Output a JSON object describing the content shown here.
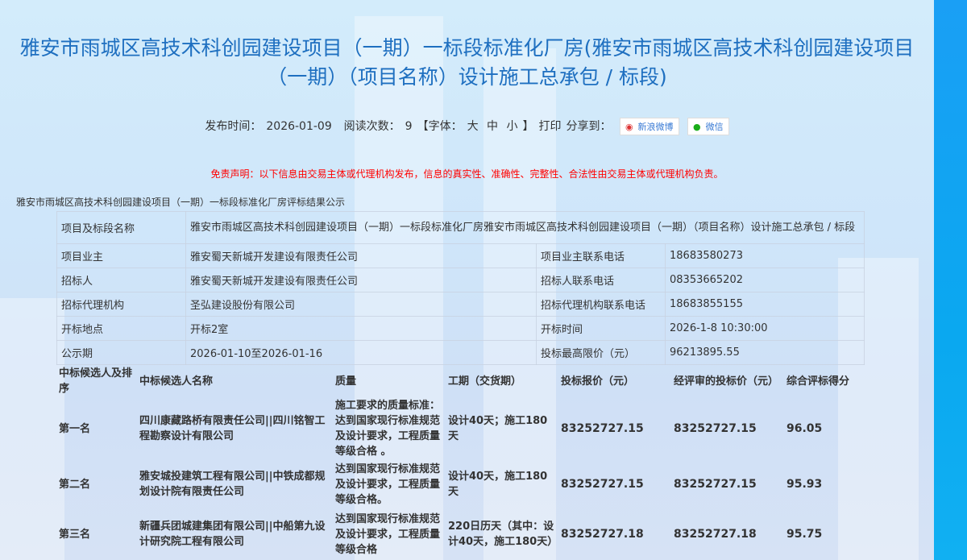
{
  "title": "雅安市雨城区高技术科创园建设项目（一期）一标段标准化厂房(雅安市雨城区高技术科创园建设项目（一期）（项目名称）设计施工总承包 / 标段)",
  "meta": {
    "publish_label": "发布时间：",
    "publish_date": "2026-01-09",
    "reads_label": "阅读次数：",
    "reads": "9",
    "font_label": "【字体：",
    "font_large": "大",
    "font_medium": "中",
    "font_small": "小",
    "font_close": "】",
    "print": "打印",
    "share_label": "分享到：",
    "weibo": "新浪微博",
    "wechat": "微信"
  },
  "disclaimer": "免责声明：以下信息由交易主体或代理机构发布，信息的真实性、准确性、完整性、合法性由交易主体或代理机构负责。",
  "subtitle": "雅安市雨城区高技术科创园建设项目（一期）一标段标准化厂房评标结果公示",
  "info": {
    "project_label": "项目及标段名称",
    "project": "雅安市雨城区高技术科创园建设项目（一期）一标段标准化厂房雅安市雨城区高技术科创园建设项目（一期）（项目名称）设计施工总承包 / 标段",
    "rows": [
      {
        "l1": "项目业主",
        "v1": "雅安蜀天新城开发建设有限责任公司",
        "l2": "项目业主联系电话",
        "v2": "18683580273"
      },
      {
        "l1": "招标人",
        "v1": "雅安蜀天新城开发建设有限责任公司",
        "l2": "招标人联系电话",
        "v2": "08353665202"
      },
      {
        "l1": "招标代理机构",
        "v1": "圣弘建设股份有限公司",
        "l2": "招标代理机构联系电话",
        "v2": "18683855155"
      },
      {
        "l1": "开标地点",
        "v1": "开标2室",
        "l2": "开标时间",
        "v2": "2026-1-8 10:30:00"
      },
      {
        "l1": "公示期",
        "v1": "2026-01-10至2026-01-16",
        "l2": "投标最高限价（元）",
        "v2": "96213895.55"
      }
    ]
  },
  "candidates": {
    "headers": [
      "中标候选人及排序",
      "中标候选人名称",
      "质量",
      "工期（交货期）",
      "投标报价（元）",
      "经评审的投标价（元）",
      "综合评标得分"
    ],
    "rows": [
      {
        "rank": "第一名",
        "name": "四川康藏路桥有限责任公司||四川铭智工程勘察设计有限公司",
        "quality": "施工要求的质量标准：达到国家现行标准规范及设计要求，工程质量等级合格 。",
        "period": "设计40天；施工180天",
        "bid": "83252727.15",
        "reviewed": "83252727.15",
        "score": "96.05"
      },
      {
        "rank": "第二名",
        "name": "雅安城投建筑工程有限公司||中铁成都规划设计院有限责任公司",
        "quality": "达到国家现行标准规范及设计要求，工程质量等级合格。",
        "period": "设计40天，施工180天",
        "bid": "83252727.15",
        "reviewed": "83252727.15",
        "score": "95.93"
      },
      {
        "rank": "第三名",
        "name": "新疆兵团城建集团有限公司||中船第九设计研究院工程有限公司",
        "quality": "达到国家现行标准规范及设计要求，工程质量等级合格",
        "period": "220日历天（其中：设计40天，施工180天）",
        "bid": "83252727.18",
        "reviewed": "83252727.18",
        "score": "95.75"
      }
    ]
  }
}
